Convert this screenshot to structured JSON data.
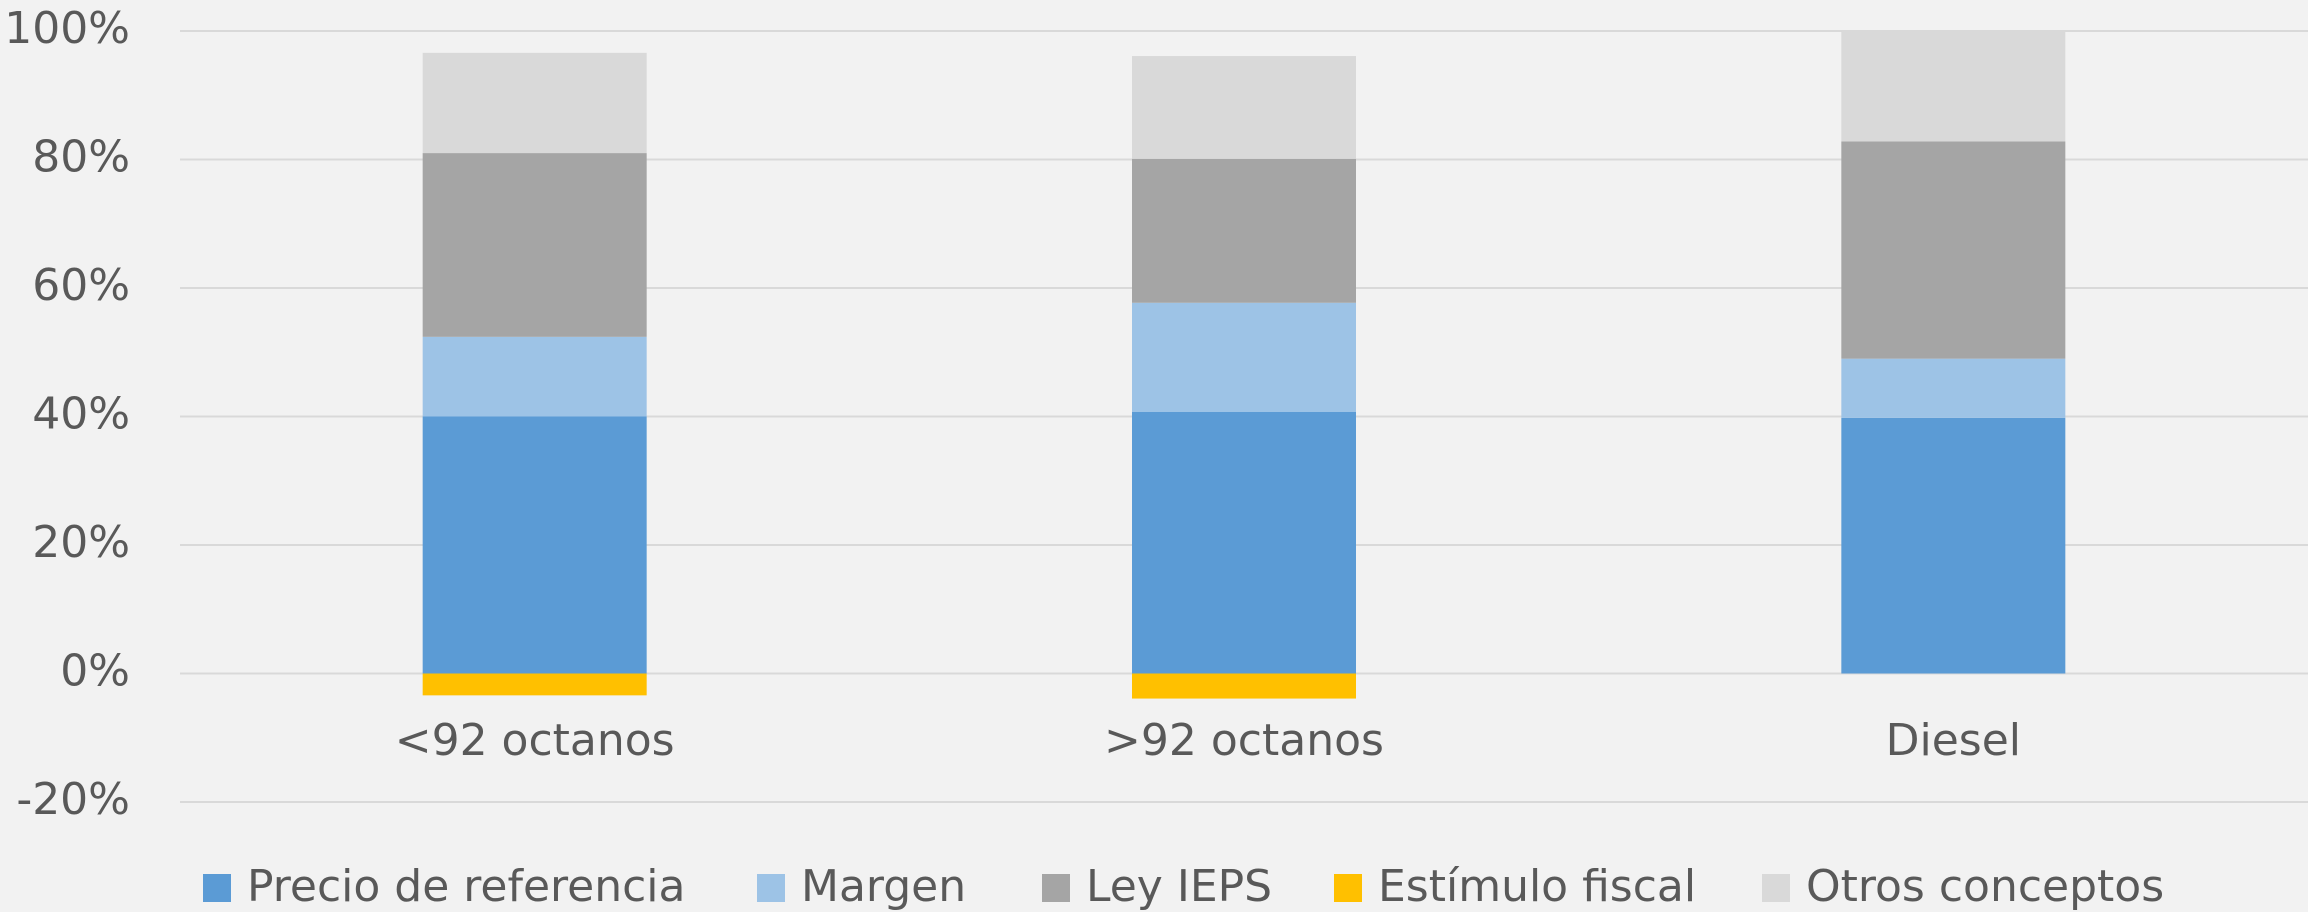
{
  "chart_data": {
    "type": "stacked_bar",
    "categories": [
      "<92 octanos",
      ">92 octanos",
      "Diesel"
    ],
    "series": [
      {
        "name": "Precio de referencia",
        "color": "#5b9bd5",
        "values": [
          40.0,
          40.7,
          39.8
        ]
      },
      {
        "name": "Margen",
        "color": "#9dc3e6",
        "values": [
          12.4,
          17.0,
          9.2
        ]
      },
      {
        "name": "Ley IEPS",
        "color": "#a5a5a5",
        "values": [
          28.6,
          22.4,
          33.8
        ]
      },
      {
        "name": "Estímulo fiscal",
        "color": "#ffc000",
        "values": [
          -3.4,
          -3.9,
          0
        ]
      },
      {
        "name": "Otros conceptos",
        "color": "#d9d9d9",
        "values": [
          15.6,
          16.0,
          17.2
        ]
      }
    ],
    "ylim": [
      -20,
      100
    ],
    "yticks": [
      {
        "value": -20,
        "label": "-20%"
      },
      {
        "value": 0,
        "label": "0%"
      },
      {
        "value": 20,
        "label": "20%"
      },
      {
        "value": 40,
        "label": "40%"
      },
      {
        "value": 60,
        "label": "60%"
      },
      {
        "value": 80,
        "label": "80%"
      },
      {
        "value": 100,
        "label": "100%"
      }
    ],
    "grid": true,
    "legend": "bottom"
  }
}
